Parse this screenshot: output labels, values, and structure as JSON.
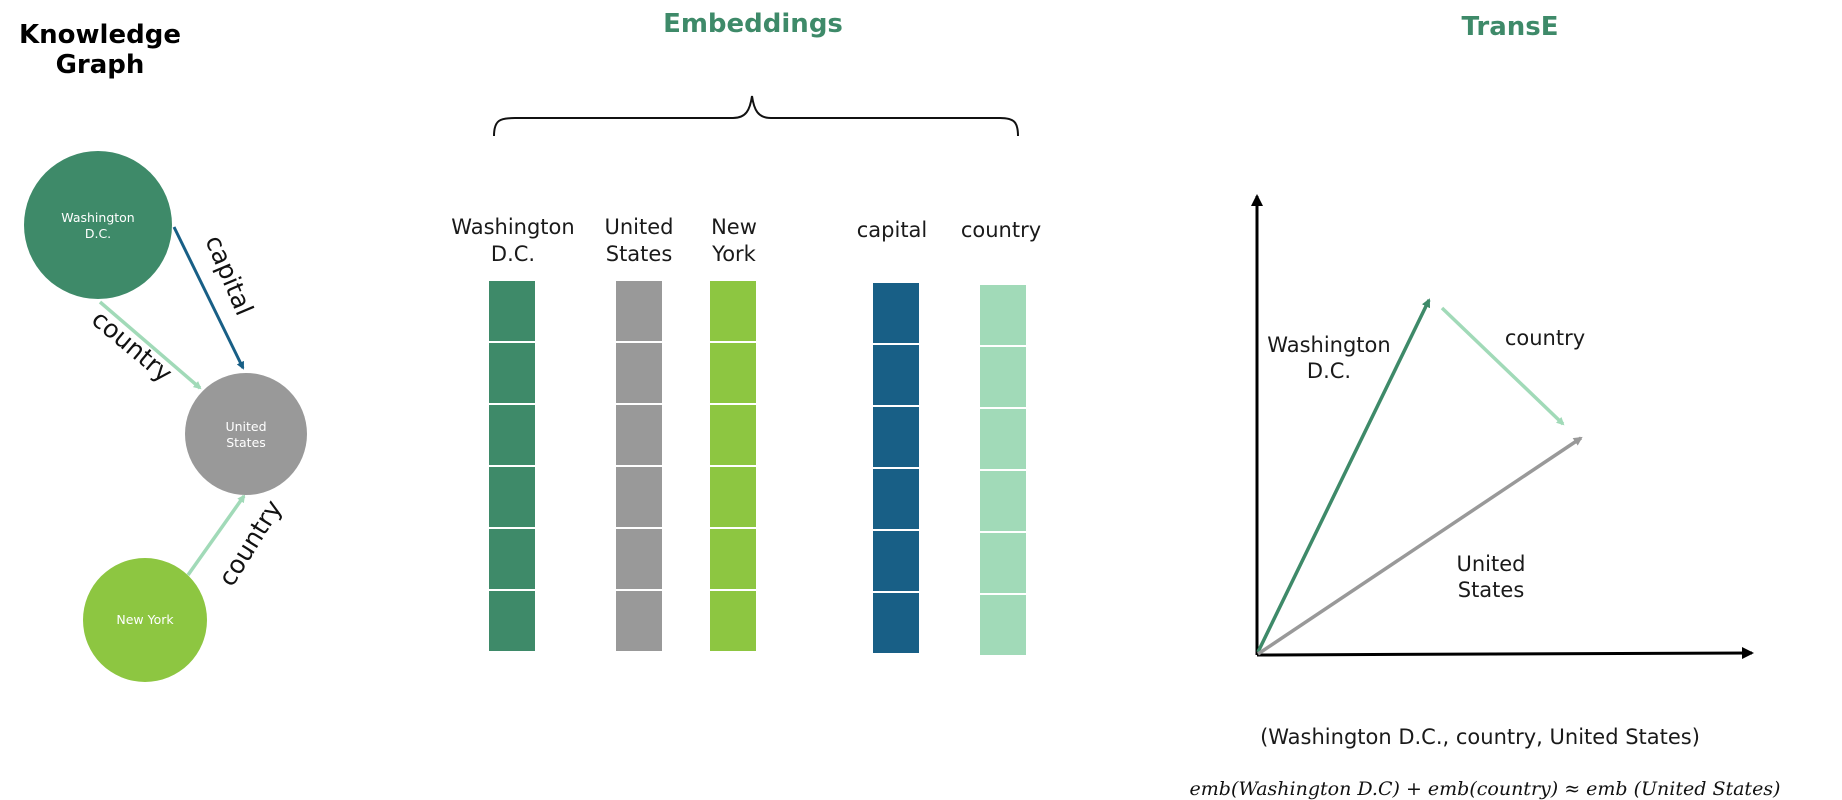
{
  "colors": {
    "heading": "#3e8a69",
    "washington": "#3e8a69",
    "united_states": "#999999",
    "new_york": "#8dc641",
    "capital": "#185f86",
    "country": "#a1dab8",
    "axis": "#000000"
  },
  "knowledge_graph": {
    "title_line1": "Knowledge",
    "title_line2": "Graph",
    "nodes": {
      "washington_l1": "Washington",
      "washington_l2": "D.C.",
      "united_states_l1": "United",
      "united_states_l2": "States",
      "new_york": "New York"
    },
    "edges": {
      "capital": "capital",
      "country_wdc": "country",
      "country_ny": "country"
    }
  },
  "embeddings": {
    "title": "Embeddings",
    "cells_per_vector": 6,
    "columns": [
      {
        "line1": "Washington",
        "line2": "D.C."
      },
      {
        "line1": "United",
        "line2": "States"
      },
      {
        "line1": "New",
        "line2": "York"
      },
      {
        "line1": "capital",
        "line2": ""
      },
      {
        "line1": "country",
        "line2": ""
      }
    ]
  },
  "transe": {
    "title": "TransE",
    "vectors": {
      "washington_l1": "Washington",
      "washington_l2": "D.C.",
      "country": "country",
      "united_states_l1": "United",
      "united_states_l2": "States"
    },
    "triple": "(Washington D.C., country, United States)",
    "formula": "emb(Washington D.C) + emb(country) ≈ emb (United States)"
  }
}
